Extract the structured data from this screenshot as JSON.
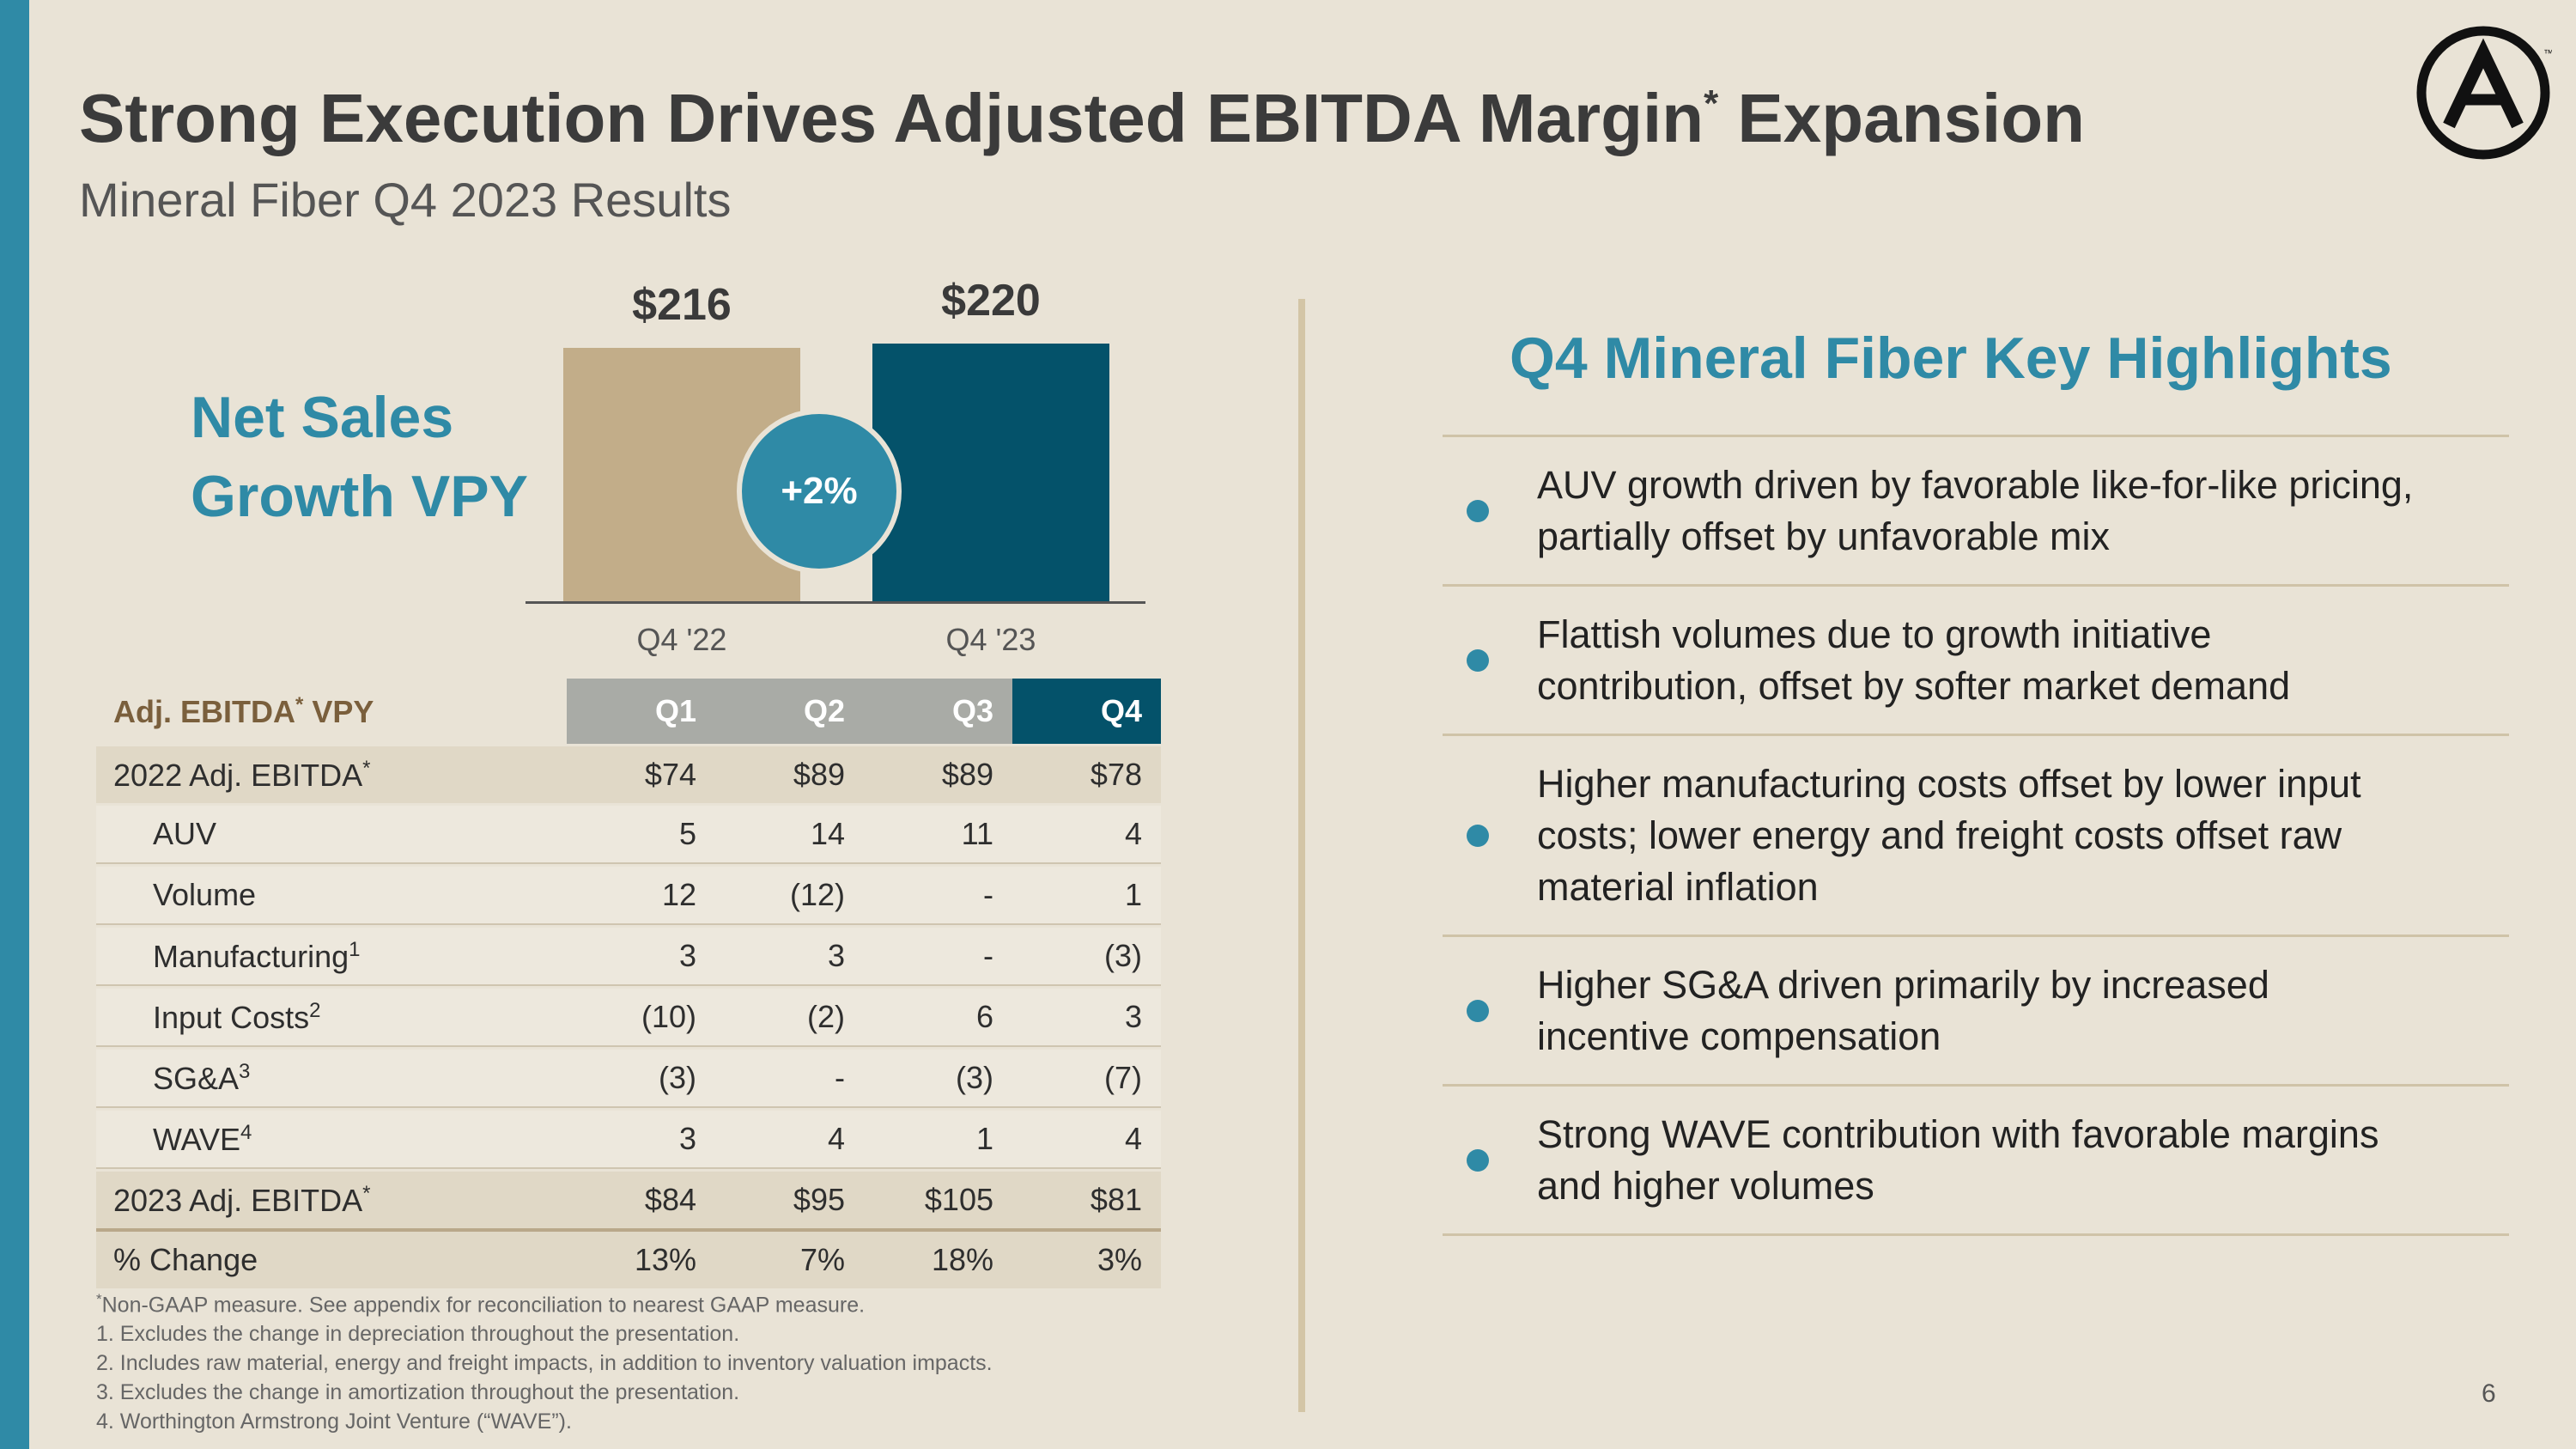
{
  "slide": {
    "title": "Strong Execution Drives Adjusted EBITDA Margin",
    "title_sup": "*",
    "title_suffix": " Expansion",
    "subtitle": "Mineral Fiber Q4 2023 Results",
    "page_number": "6"
  },
  "chart": {
    "heading_line1": "Net Sales",
    "heading_line2": "Growth VPY",
    "growth_badge": "+2%"
  },
  "chart_data": {
    "type": "bar",
    "categories": [
      "Q4 '22",
      "Q4 '23"
    ],
    "values": [
      216,
      220
    ],
    "value_labels": [
      "$216",
      "$220"
    ],
    "colors": [
      "#c2ad89",
      "#04526a"
    ],
    "title": "Net Sales Growth VPY",
    "xlabel": "",
    "ylabel": "",
    "ylim": [
      0,
      220
    ],
    "grid": false,
    "annotations": [
      "+2%"
    ]
  },
  "table": {
    "header_label": "Adj. EBITDA",
    "header_sup": "*",
    "header_suffix": " VPY",
    "columns": [
      "Q1",
      "Q2",
      "Q3",
      "Q4"
    ],
    "rows": [
      {
        "label": "2022 Adj. EBITDA",
        "sup": "*",
        "cells": [
          "$74",
          "$89",
          "$89",
          "$78"
        ]
      },
      {
        "label": "AUV",
        "sup": "",
        "cells": [
          "5",
          "14",
          "11",
          "4"
        ]
      },
      {
        "label": "Volume",
        "sup": "",
        "cells": [
          "12",
          "(12)",
          "-",
          "1"
        ]
      },
      {
        "label": "Manufacturing",
        "sup": "1",
        "cells": [
          "3",
          "3",
          "-",
          "(3)"
        ]
      },
      {
        "label": "Input Costs",
        "sup": "2",
        "cells": [
          "(10)",
          "(2)",
          "6",
          "3"
        ]
      },
      {
        "label": "SG&A",
        "sup": "3",
        "cells": [
          "(3)",
          "-",
          "(3)",
          "(7)"
        ]
      },
      {
        "label": "WAVE",
        "sup": "4",
        "cells": [
          "3",
          "4",
          "1",
          "4"
        ]
      },
      {
        "label": "2023 Adj. EBITDA",
        "sup": "*",
        "cells": [
          "$84",
          "$95",
          "$105",
          "$81"
        ]
      },
      {
        "label": "% Change",
        "sup": "",
        "cells": [
          "13%",
          "7%",
          "18%",
          "3%"
        ]
      }
    ]
  },
  "footnotes": {
    "star_mark": "*",
    "star_text": "Non-GAAP measure. See appendix for reconciliation to nearest GAAP measure.",
    "items": [
      "1. Excludes the change in depreciation throughout the presentation.",
      "2. Includes raw material, energy and freight impacts, in addition to inventory valuation impacts.",
      "3. Excludes the change in amortization throughout the presentation.",
      "4. Worthington Armstrong Joint Venture (“WAVE”)."
    ]
  },
  "highlights": {
    "title": "Q4 Mineral Fiber Key Highlights",
    "items": [
      {
        "line1": "AUV growth driven by favorable like-for-like pricing,",
        "line2": "partially offset by unfavorable mix",
        "line3": ""
      },
      {
        "line1": "Flattish volumes due to growth initiative",
        "line2": "contribution, offset by softer market demand",
        "line3": ""
      },
      {
        "line1": "Higher manufacturing costs offset by lower input",
        "line2": "costs; lower energy and freight costs offset raw",
        "line3": "material inflation"
      },
      {
        "line1": "Higher SG&A driven primarily by increased",
        "line2": "incentive compensation",
        "line3": ""
      },
      {
        "line1": "Strong WAVE contribution with favorable margins",
        "line2": "and higher volumes",
        "line3": ""
      }
    ]
  },
  "colors": {
    "accent": "#2f8aa6",
    "navy": "#04526a",
    "tan": "#c2ad89",
    "background": "#e9e3d6"
  },
  "logo": {
    "icon": "armstrong-a-logo-icon",
    "mark": "™"
  }
}
